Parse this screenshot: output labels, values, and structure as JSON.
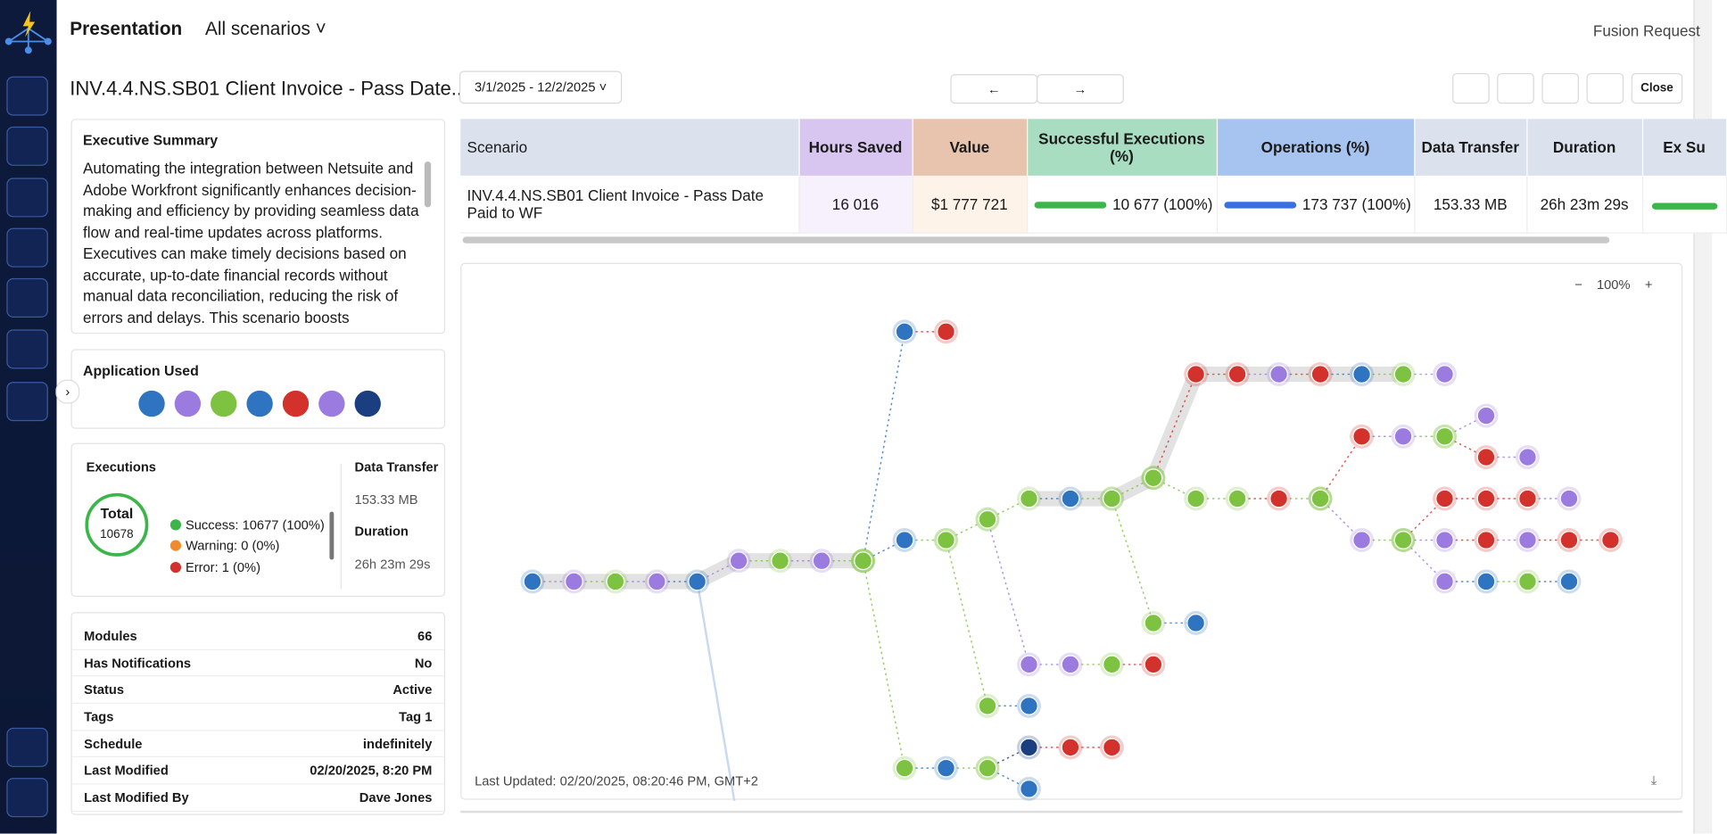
{
  "header": {
    "title": "Presentation",
    "scenario_select": "All scenarios",
    "request": "Fusion Request"
  },
  "scenario_title": "INV.4.4.NS.SB01 Client Invoice - Pass Date...",
  "date_range": "3/1/2025 - 12/2/2025",
  "close": "Close",
  "summary": {
    "title": "Executive Summary",
    "text": "Automating the integration between Netsuite and Adobe Workfront significantly enhances decision-making and efficiency by providing seamless data flow and real-time updates across platforms. Executives can make timely decisions based on accurate, up-to-date financial records without manual data reconciliation, reducing the risk of errors and delays. This scenario boosts"
  },
  "apps": {
    "title": "Application Used"
  },
  "executions": {
    "title": "Executions",
    "total_label": "Total",
    "total": "10678",
    "legend": [
      "Success: 10677 (100%)",
      "Warning: 0 (0%)",
      "Error: 1 (0%)"
    ],
    "data_transfer_label": "Data Transfer",
    "data_transfer": "153.33 MB",
    "duration_label": "Duration",
    "duration": "26h 23m 29s"
  },
  "details": [
    [
      "Modules",
      "66"
    ],
    [
      "Has Notifications",
      "No"
    ],
    [
      "Status",
      "Active"
    ],
    [
      "Tags",
      "Tag 1"
    ],
    [
      "Schedule",
      "indefinitely"
    ],
    [
      "Last Modified",
      "02/20/2025, 8:20 PM"
    ],
    [
      "Last Modified By",
      "Dave Jones"
    ]
  ],
  "table": {
    "headers": [
      "Scenario",
      "Hours Saved",
      "Value",
      "Successful Executions (%)",
      "Operations (%)",
      "Data Transfer",
      "Duration",
      "Ex Su"
    ],
    "row": [
      "INV.4.4.NS.SB01 Client Invoice - Pass Date Paid to WF",
      "16 016",
      "$1 777 721",
      "10 677 (100%)",
      "173 737 (100%)",
      "153.33 MB",
      "26h 23m 29s"
    ]
  },
  "diagram": {
    "zoom": "100%",
    "last_updated": "Last Updated: 02/20/2025, 08:20:46 PM, GMT+2"
  }
}
